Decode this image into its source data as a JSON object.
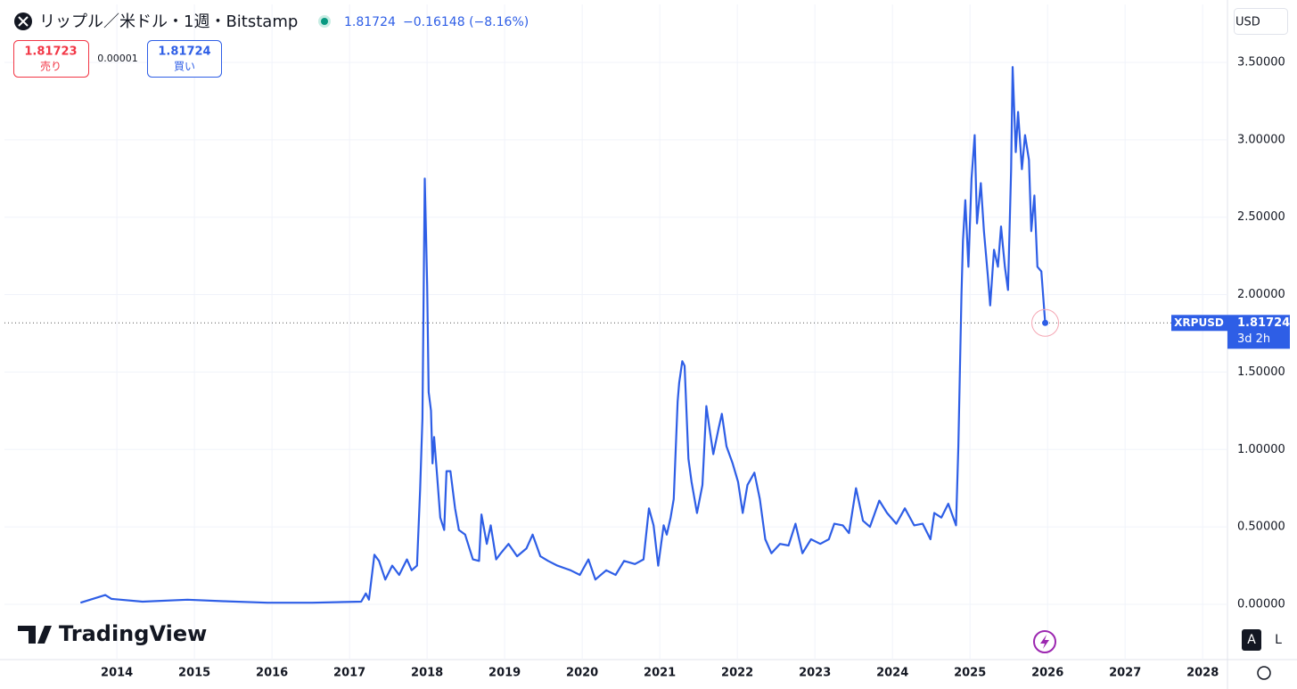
{
  "header": {
    "change": "−0.16148 (−8.16%)",
    "sell": "1.81723",
    "sell_label": "売り",
    "spread": "0.00001",
    "buy_label": "買い",
    "currency": "USD",
    "countdown": "3d 2h",
    "brand": "TradingView",
    "auto": "A",
    "log": "L"
  },
  "chart_data": {
    "type": "line",
    "title": "リップル／米ドル・1週・Bitstamp",
    "x": [
      2013.53,
      2013.85,
      2013.93,
      2014.33,
      2014.91,
      2015.37,
      2015.94,
      2016.52,
      2017.15,
      2017.21,
      2017.25,
      2017.32,
      2017.38,
      2017.46,
      2017.55,
      2017.64,
      2017.74,
      2017.8,
      2017.87,
      2017.91,
      2017.94,
      2017.97,
      2018.0,
      2018.02,
      2018.05,
      2018.07,
      2018.09,
      2018.13,
      2018.17,
      2018.22,
      2018.25,
      2018.3,
      2018.36,
      2018.41,
      2018.49,
      2018.59,
      2018.67,
      2018.7,
      2018.77,
      2018.82,
      2018.89,
      2018.95,
      2019.05,
      2019.16,
      2019.28,
      2019.36,
      2019.46,
      2019.56,
      2019.68,
      2019.85,
      2019.97,
      2020.08,
      2020.17,
      2020.31,
      2020.43,
      2020.54,
      2020.68,
      2020.79,
      2020.86,
      2020.92,
      2020.98,
      2021.05,
      2021.09,
      2021.14,
      2021.18,
      2021.23,
      2021.25,
      2021.29,
      2021.32,
      2021.37,
      2021.41,
      2021.48,
      2021.55,
      2021.6,
      2021.64,
      2021.69,
      2021.76,
      2021.8,
      2021.86,
      2021.94,
      2022.01,
      2022.07,
      2022.13,
      2022.22,
      2022.29,
      2022.36,
      2022.44,
      2022.55,
      2022.66,
      2022.75,
      2022.84,
      2022.95,
      2023.07,
      2023.18,
      2023.25,
      2023.36,
      2023.44,
      2023.53,
      2023.62,
      2023.71,
      2023.83,
      2023.93,
      2024.05,
      2024.16,
      2024.28,
      2024.39,
      2024.49,
      2024.54,
      2024.63,
      2024.72,
      2024.82,
      2024.85,
      2024.89,
      2024.91,
      2024.94,
      2024.98,
      2025.02,
      2025.06,
      2025.09,
      2025.14,
      2025.18,
      2025.23,
      2025.26,
      2025.31,
      2025.36,
      2025.4,
      2025.45,
      2025.49,
      2025.53,
      2025.55,
      2025.59,
      2025.62,
      2025.67,
      2025.71,
      2025.76,
      2025.79,
      2025.83,
      2025.87,
      2025.92,
      2025.97
    ],
    "series": [
      {
        "name": "XRPUSD",
        "color": "#2e5ee6",
        "values": [
          0.01,
          0.06,
          0.035,
          0.017,
          0.03,
          0.02,
          0.01,
          0.01,
          0.017,
          0.07,
          0.03,
          0.32,
          0.28,
          0.16,
          0.25,
          0.19,
          0.29,
          0.22,
          0.25,
          0.74,
          1.2,
          2.75,
          2.06,
          1.37,
          1.25,
          0.91,
          1.08,
          0.82,
          0.56,
          0.48,
          0.86,
          0.86,
          0.62,
          0.48,
          0.45,
          0.29,
          0.28,
          0.58,
          0.39,
          0.51,
          0.29,
          0.33,
          0.39,
          0.31,
          0.36,
          0.45,
          0.31,
          0.28,
          0.25,
          0.22,
          0.19,
          0.29,
          0.16,
          0.22,
          0.19,
          0.28,
          0.26,
          0.29,
          0.62,
          0.51,
          0.25,
          0.51,
          0.45,
          0.56,
          0.68,
          1.31,
          1.43,
          1.57,
          1.54,
          0.94,
          0.79,
          0.59,
          0.77,
          1.28,
          1.14,
          0.97,
          1.14,
          1.23,
          1.02,
          0.91,
          0.79,
          0.59,
          0.77,
          0.85,
          0.68,
          0.42,
          0.33,
          0.39,
          0.38,
          0.52,
          0.33,
          0.42,
          0.39,
          0.42,
          0.52,
          0.51,
          0.46,
          0.75,
          0.54,
          0.5,
          0.67,
          0.59,
          0.52,
          0.62,
          0.51,
          0.52,
          0.42,
          0.59,
          0.56,
          0.65,
          0.51,
          1.02,
          2.0,
          2.35,
          2.61,
          2.18,
          2.75,
          3.03,
          2.46,
          2.72,
          2.41,
          2.12,
          1.93,
          2.29,
          2.18,
          2.44,
          2.18,
          2.03,
          2.81,
          3.47,
          2.92,
          3.18,
          2.81,
          3.03,
          2.87,
          2.41,
          2.64,
          2.18,
          2.15,
          1.81724
        ]
      }
    ],
    "xlim": [
      2012.55,
      2028.32
    ],
    "xticks": [
      2014,
      2015,
      2016,
      2017,
      2018,
      2019,
      2020,
      2021,
      2022,
      2023,
      2024,
      2025,
      2026,
      2027,
      2028
    ],
    "ylim": [
      -0.357,
      3.874
    ],
    "yticks": [
      {
        "value": 0,
        "label": "0.00000"
      },
      {
        "value": 0.5,
        "label": "0.50000"
      },
      {
        "value": 1,
        "label": "1.00000"
      },
      {
        "value": 1.5,
        "label": "1.50000"
      },
      {
        "value": 2,
        "label": "2.00000"
      },
      {
        "value": 2.5,
        "label": "2.50000"
      },
      {
        "value": 3,
        "label": "3.00000"
      },
      {
        "value": 3.5,
        "label": "3.50000"
      }
    ],
    "grid": true
  }
}
